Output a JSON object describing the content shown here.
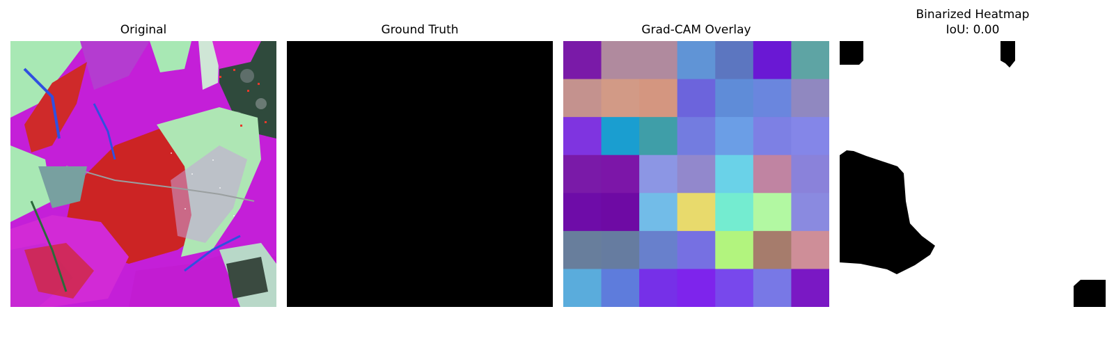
{
  "panels": [
    {
      "title": "Original"
    },
    {
      "title": "Ground Truth"
    },
    {
      "title": "Grad-CAM Overlay"
    },
    {
      "title": "Binarized Heatmap",
      "subtitle": "IoU: 0.00"
    }
  ],
  "gradcam_grid": [
    [
      "#7a1aa8",
      "#b08a9e",
      "#b08a9e",
      "#6094d6",
      "#5c76c0",
      "#6a18d4",
      "#5ea4a4"
    ],
    [
      "#c4928e",
      "#d29a86",
      "#d49680",
      "#6c64dc",
      "#5f8cd8",
      "#6a86de",
      "#9088c0"
    ],
    [
      "#7f34e0",
      "#1a9ed0",
      "#3f9ea8",
      "#737ce0",
      "#6b9ee6",
      "#7d80e4",
      "#8486e8"
    ],
    [
      "#7a1aa8",
      "#7c16a8",
      "#8c96e4",
      "#9288cc",
      "#6ad2e8",
      "#c084a2",
      "#8a82da"
    ],
    [
      "#6e0ca8",
      "#6e0aa4",
      "#72bce8",
      "#e8da6c",
      "#74ecd0",
      "#b2f8a2",
      "#8a8ae0"
    ],
    [
      "#687e9c",
      "#667ca0",
      "#6880cc",
      "#7670e2",
      "#b2f47e",
      "#a67c6c",
      "#ce8e98"
    ],
    [
      "#5aacdc",
      "#5e7cdc",
      "#7630e8",
      "#7e24ec",
      "#7848ec",
      "#7878e6",
      "#7a18c4"
    ]
  ]
}
